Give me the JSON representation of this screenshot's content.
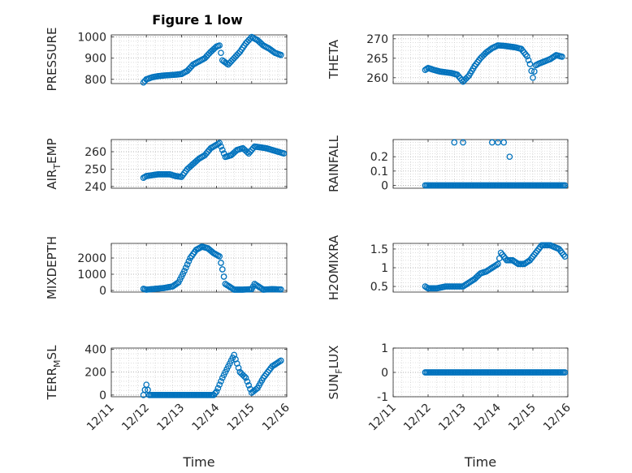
{
  "figure": {
    "title": "Figure 1 low",
    "marker_color": "#0072BD",
    "grid": "dotted, on"
  },
  "chart_data": [
    {
      "type": "scatter",
      "ylabel": "PRESSURE",
      "xlim": [
        "12/11",
        "12/16"
      ],
      "ylim": [
        780,
        1010
      ],
      "yticks": [
        800,
        900,
        1000
      ],
      "xticks": [],
      "x": [
        "12/11 22:00",
        "12/12 00:00",
        "12/12 04:00",
        "12/12 08:00",
        "12/12 12:00",
        "12/12 16:00",
        "12/12 20:00",
        "12/13 00:00",
        "12/13 04:00",
        "12/13 08:00",
        "12/13 12:00",
        "12/13 16:00",
        "12/13 20:00",
        "12/14 00:00",
        "12/14 02:00",
        "12/14 04:00",
        "12/14 08:00",
        "12/14 12:00",
        "12/14 16:00",
        "12/14 20:00",
        "12/15 00:00",
        "12/15 04:00",
        "12/15 08:00",
        "12/15 12:00",
        "12/15 16:00",
        "12/15 20:00"
      ],
      "y": [
        785,
        800,
        810,
        815,
        818,
        820,
        822,
        825,
        840,
        870,
        885,
        900,
        930,
        955,
        960,
        890,
        870,
        900,
        930,
        970,
        1000,
        985,
        960,
        945,
        925,
        915
      ]
    },
    {
      "type": "scatter",
      "ylabel": "THETA",
      "xlim": [
        "12/11",
        "12/16"
      ],
      "ylim": [
        258.5,
        271
      ],
      "yticks": [
        260,
        265,
        270
      ],
      "xticks": [],
      "x": [
        "12/11 22:00",
        "12/12 00:00",
        "12/12 04:00",
        "12/12 08:00",
        "12/12 12:00",
        "12/12 16:00",
        "12/12 20:00",
        "12/13 00:00",
        "12/13 04:00",
        "12/13 08:00",
        "12/13 12:00",
        "12/13 16:00",
        "12/13 20:00",
        "12/14 00:00",
        "12/14 04:00",
        "12/14 08:00",
        "12/14 12:00",
        "12/14 16:00",
        "12/14 20:00",
        "12/14 22:00",
        "12/15 00:00",
        "12/15 02:00",
        "12/15 04:00",
        "12/15 08:00",
        "12/15 12:00",
        "12/15 16:00",
        "12/15 20:00"
      ],
      "y": [
        262,
        262.5,
        262,
        261.6,
        261.4,
        261.2,
        260.8,
        259,
        260.5,
        263,
        265,
        266.5,
        267.6,
        268.3,
        268.2,
        268,
        267.8,
        267.4,
        265.5,
        263.5,
        260,
        263.2,
        263.6,
        264.2,
        264.8,
        265.8,
        265.4
      ]
    },
    {
      "type": "scatter",
      "ylabel": "AIR_TEMP",
      "xlim": [
        "12/11",
        "12/16"
      ],
      "ylim": [
        239,
        267
      ],
      "yticks": [
        240,
        250,
        260
      ],
      "xticks": [],
      "x": [
        "12/11 22:00",
        "12/12 00:00",
        "12/12 04:00",
        "12/12 08:00",
        "12/12 12:00",
        "12/12 16:00",
        "12/12 20:00",
        "12/13 00:00",
        "12/13 04:00",
        "12/13 08:00",
        "12/13 12:00",
        "12/13 16:00",
        "12/13 20:00",
        "12/14 00:00",
        "12/14 02:00",
        "12/14 06:00",
        "12/14 10:00",
        "12/14 14:00",
        "12/14 18:00",
        "12/14 22:00",
        "12/15 02:00",
        "12/15 06:00",
        "12/15 10:00",
        "12/15 14:00",
        "12/15 18:00",
        "12/15 22:00"
      ],
      "y": [
        245,
        246,
        246.5,
        247,
        247,
        247,
        246,
        245.5,
        250,
        253,
        256,
        258,
        262,
        264,
        265,
        257,
        258,
        261,
        262,
        259,
        263,
        262.5,
        262,
        261,
        260,
        259
      ]
    },
    {
      "type": "scatter",
      "ylabel": "RAINFALL",
      "xlim": [
        "12/11",
        "12/16"
      ],
      "ylim": [
        -0.02,
        0.32
      ],
      "yticks": [
        0,
        0.1,
        0.2
      ],
      "xticks": [],
      "x": [
        "12/11 22:00",
        "12/12 06:00",
        "12/12 14:00",
        "12/12 22:00",
        "12/13 06:00",
        "12/13 14:00",
        "12/13 22:00",
        "12/14 06:00",
        "12/14 14:00",
        "12/14 22:00",
        "12/15 06:00",
        "12/15 14:00",
        "12/15 22:00",
        "12/12 18:00",
        "12/13 00:00",
        "12/13 20:00",
        "12/14 00:00",
        "12/14 04:00",
        "12/14 08:00"
      ],
      "y": [
        0,
        0,
        0,
        0,
        0,
        0,
        0,
        0,
        0,
        0,
        0,
        0,
        0,
        0.3,
        0.3,
        0.3,
        0.3,
        0.3,
        0.2
      ]
    },
    {
      "type": "scatter",
      "ylabel": "MIXDEPTH",
      "xlim": [
        "12/11",
        "12/16"
      ],
      "ylim": [
        -100,
        2900
      ],
      "yticks": [
        0,
        1000,
        2000
      ],
      "xticks": [],
      "x": [
        "12/11 22:00",
        "12/12 00:00",
        "12/12 06:00",
        "12/12 12:00",
        "12/12 18:00",
        "12/12 22:00",
        "12/13 02:00",
        "12/13 06:00",
        "12/13 10:00",
        "12/13 14:00",
        "12/13 18:00",
        "12/13 22:00",
        "12/14 02:00",
        "12/14 04:00",
        "12/14 06:00",
        "12/14 12:00",
        "12/14 18:00",
        "12/15 00:00",
        "12/15 02:00",
        "12/15 08:00",
        "12/15 14:00",
        "12/15 20:00"
      ],
      "y": [
        100,
        50,
        100,
        150,
        250,
        500,
        1200,
        2000,
        2500,
        2700,
        2600,
        2300,
        2100,
        1300,
        400,
        50,
        50,
        80,
        400,
        50,
        80,
        60
      ]
    },
    {
      "type": "scatter",
      "ylabel": "H2OMIXRA",
      "xlim": [
        "12/11",
        "12/16"
      ],
      "ylim": [
        0.35,
        1.65
      ],
      "yticks": [
        0.5,
        1,
        1.5
      ],
      "xticks": [],
      "x": [
        "12/11 22:00",
        "12/12 00:00",
        "12/12 06:00",
        "12/12 12:00",
        "12/12 18:00",
        "12/13 00:00",
        "12/13 04:00",
        "12/13 08:00",
        "12/13 12:00",
        "12/13 16:00",
        "12/13 20:00",
        "12/14 00:00",
        "12/14 02:00",
        "12/14 06:00",
        "12/14 10:00",
        "12/14 14:00",
        "12/14 18:00",
        "12/14 22:00",
        "12/15 00:00",
        "12/15 06:00",
        "12/15 12:00",
        "12/15 18:00",
        "12/15 22:00"
      ],
      "y": [
        0.5,
        0.45,
        0.45,
        0.5,
        0.5,
        0.5,
        0.6,
        0.7,
        0.85,
        0.9,
        1.0,
        1.1,
        1.4,
        1.2,
        1.2,
        1.1,
        1.1,
        1.2,
        1.3,
        1.6,
        1.6,
        1.5,
        1.3
      ]
    },
    {
      "type": "scatter",
      "ylabel": "TERR_MSL",
      "xlim": [
        "12/11",
        "12/16"
      ],
      "ylim": [
        -15,
        410
      ],
      "yticks": [
        0,
        200,
        400
      ],
      "xticks": [
        "12/11",
        "12/12",
        "12/13",
        "12/14",
        "12/15",
        "12/16"
      ],
      "xlabel": "Time",
      "x": [
        "12/11 22:00",
        "12/12 00:00",
        "12/12 02:00",
        "12/12 06:00",
        "12/12 12:00",
        "12/12 18:00",
        "12/13 00:00",
        "12/13 06:00",
        "12/13 12:00",
        "12/13 18:00",
        "12/13 22:00",
        "12/14 00:00",
        "12/14 04:00",
        "12/14 08:00",
        "12/14 12:00",
        "12/14 16:00",
        "12/14 20:00",
        "12/15 00:00",
        "12/15 04:00",
        "12/15 08:00",
        "12/15 14:00",
        "12/15 20:00"
      ],
      "y": [
        0,
        90,
        0,
        0,
        0,
        0,
        0,
        0,
        0,
        0,
        0,
        30,
        150,
        250,
        350,
        200,
        150,
        20,
        60,
        150,
        250,
        300
      ]
    },
    {
      "type": "scatter",
      "ylabel": "SUN_FLUX",
      "xlim": [
        "12/11",
        "12/16"
      ],
      "ylim": [
        -1,
        1
      ],
      "yticks": [
        -1,
        0,
        1
      ],
      "xticks": [
        "12/11",
        "12/12",
        "12/13",
        "12/14",
        "12/15",
        "12/16"
      ],
      "xlabel": "Time",
      "x": [
        "12/11 22:00",
        "12/12 06:00",
        "12/12 14:00",
        "12/12 22:00",
        "12/13 06:00",
        "12/13 14:00",
        "12/13 22:00",
        "12/14 06:00",
        "12/14 14:00",
        "12/14 22:00",
        "12/15 06:00",
        "12/15 14:00",
        "12/15 22:00"
      ],
      "y": [
        0,
        0,
        0,
        0,
        0,
        0,
        0,
        0,
        0,
        0,
        0,
        0,
        0
      ]
    }
  ]
}
